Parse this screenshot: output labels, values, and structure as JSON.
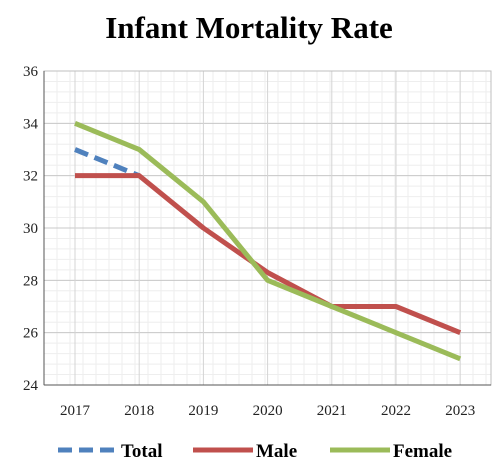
{
  "chart_data": {
    "type": "line",
    "title": "Infant Mortality Rate",
    "xlabel": "",
    "ylabel": "",
    "categories": [
      "2017",
      "2018",
      "2019",
      "2020",
      "2021",
      "2022",
      "2023"
    ],
    "ylim": [
      24,
      36
    ],
    "yticks": [
      24,
      26,
      28,
      30,
      32,
      34,
      36
    ],
    "grid": true,
    "legend_position": "bottom",
    "series": [
      {
        "name": "Total",
        "color": "#4f81bd",
        "dash": "dashed",
        "values": [
          33,
          32,
          null,
          null,
          null,
          null,
          null
        ]
      },
      {
        "name": "Male",
        "color": "#c0504d",
        "dash": "solid",
        "values": [
          32,
          32,
          30,
          28.3,
          27,
          27,
          26
        ]
      },
      {
        "name": "Female",
        "color": "#9bbb59",
        "dash": "solid",
        "values": [
          34,
          33,
          31,
          28,
          27,
          26,
          25
        ]
      }
    ]
  }
}
